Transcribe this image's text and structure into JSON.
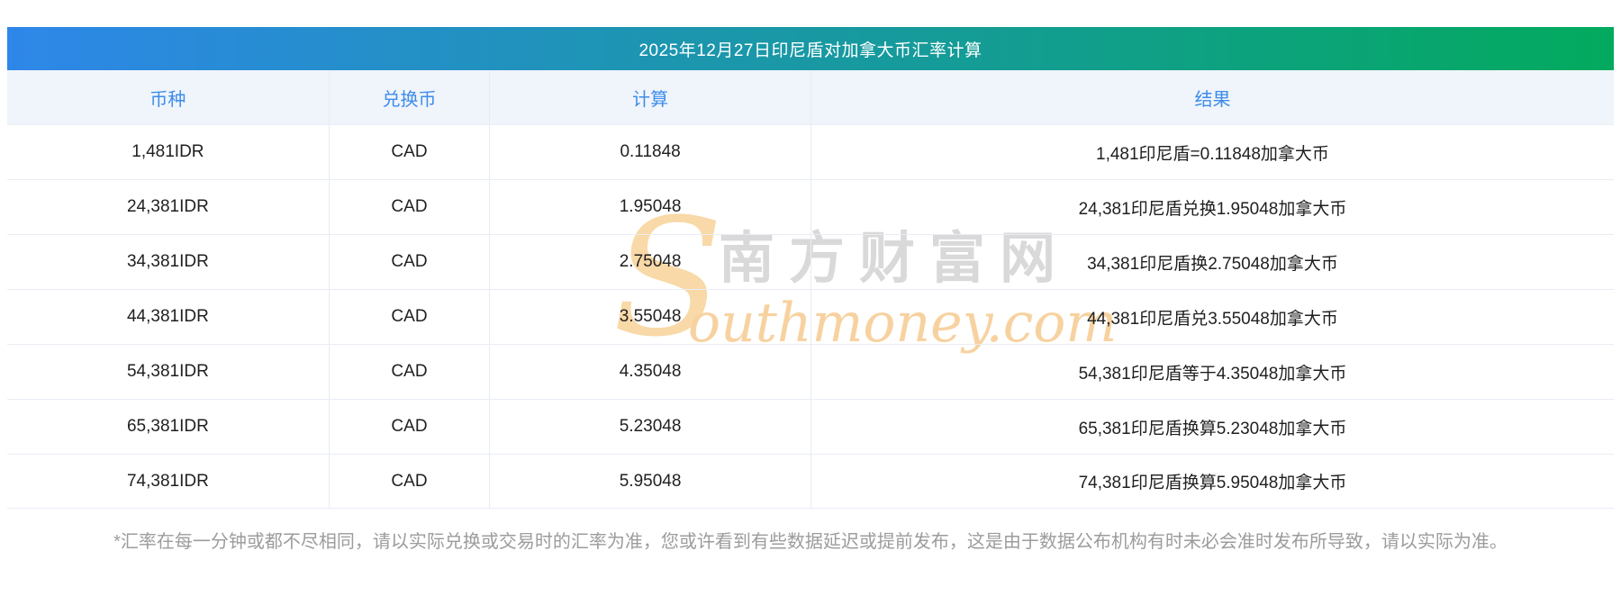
{
  "banner": {
    "title": "2025年12月27日印尼盾对加拿大币汇率计算"
  },
  "table": {
    "headers": [
      "币种",
      "兑换币",
      "计算",
      "结果"
    ],
    "rows": [
      {
        "currency": "1,481IDR",
        "to": "CAD",
        "calc": "0.11848",
        "result": "1,481印尼盾=0.11848加拿大币"
      },
      {
        "currency": "24,381IDR",
        "to": "CAD",
        "calc": "1.95048",
        "result": "24,381印尼盾兑换1.95048加拿大币"
      },
      {
        "currency": "34,381IDR",
        "to": "CAD",
        "calc": "2.75048",
        "result": "34,381印尼盾换2.75048加拿大币"
      },
      {
        "currency": "44,381IDR",
        "to": "CAD",
        "calc": "3.55048",
        "result": "44,381印尼盾兑3.55048加拿大币"
      },
      {
        "currency": "54,381IDR",
        "to": "CAD",
        "calc": "4.35048",
        "result": "54,381印尼盾等于4.35048加拿大币"
      },
      {
        "currency": "65,381IDR",
        "to": "CAD",
        "calc": "5.23048",
        "result": "65,381印尼盾换算5.23048加拿大币"
      },
      {
        "currency": "74,381IDR",
        "to": "CAD",
        "calc": "5.95048",
        "result": "74,381印尼盾换算5.95048加拿大币"
      }
    ]
  },
  "watermark": {
    "initial": "S",
    "cn": "南方财富网",
    "en_rest": "outhmoney.com"
  },
  "footer": {
    "note": "*汇率在每一分钟或都不尽相同，请以实际兑换或交易时的汇率为准，您或许看到有些数据延迟或提前发布，这是由于数据公布机构有时未必会准时发布所导致，请以实际为准。"
  },
  "colors": {
    "banner_gradient_from": "#2e87e9",
    "banner_gradient_to": "#03aa5e",
    "header_text": "#3d8dea",
    "header_bg": "#f0f4fb",
    "row_border": "#e9edf4",
    "watermark_gray": "#d9d9d9",
    "watermark_orange": "#f7d2a0",
    "footer_text": "#9c9c9c"
  }
}
